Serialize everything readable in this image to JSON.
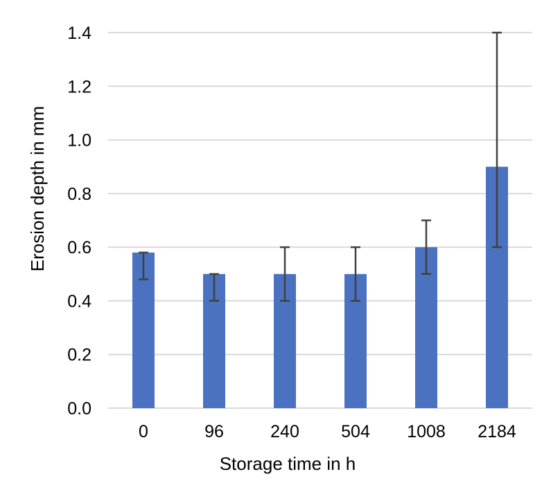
{
  "chart_data": {
    "type": "bar",
    "title": "",
    "xlabel": "Storage time in h",
    "ylabel": "Erosion depth in mm",
    "categories": [
      "0",
      "96",
      "240",
      "504",
      "1008",
      "2184"
    ],
    "values": [
      0.58,
      0.5,
      0.5,
      0.5,
      0.6,
      0.9
    ],
    "error_low": [
      0.48,
      0.4,
      0.4,
      0.4,
      0.5,
      0.6
    ],
    "error_high": [
      0.58,
      0.5,
      0.6,
      0.6,
      0.7,
      1.4
    ],
    "ylim": [
      0,
      1.4
    ],
    "yticks": [
      "0.0",
      "0.2",
      "0.4",
      "0.6",
      "0.8",
      "1.0",
      "1.2",
      "1.4"
    ],
    "ytick_values": [
      0,
      0.2,
      0.4,
      0.6,
      0.8,
      1.0,
      1.2,
      1.4
    ],
    "grid": true,
    "legend": "none",
    "colors": {
      "bar": "#4a72c0",
      "gridline": "#d9d9d9",
      "errorbar": "#404040",
      "text": "#000000"
    }
  }
}
